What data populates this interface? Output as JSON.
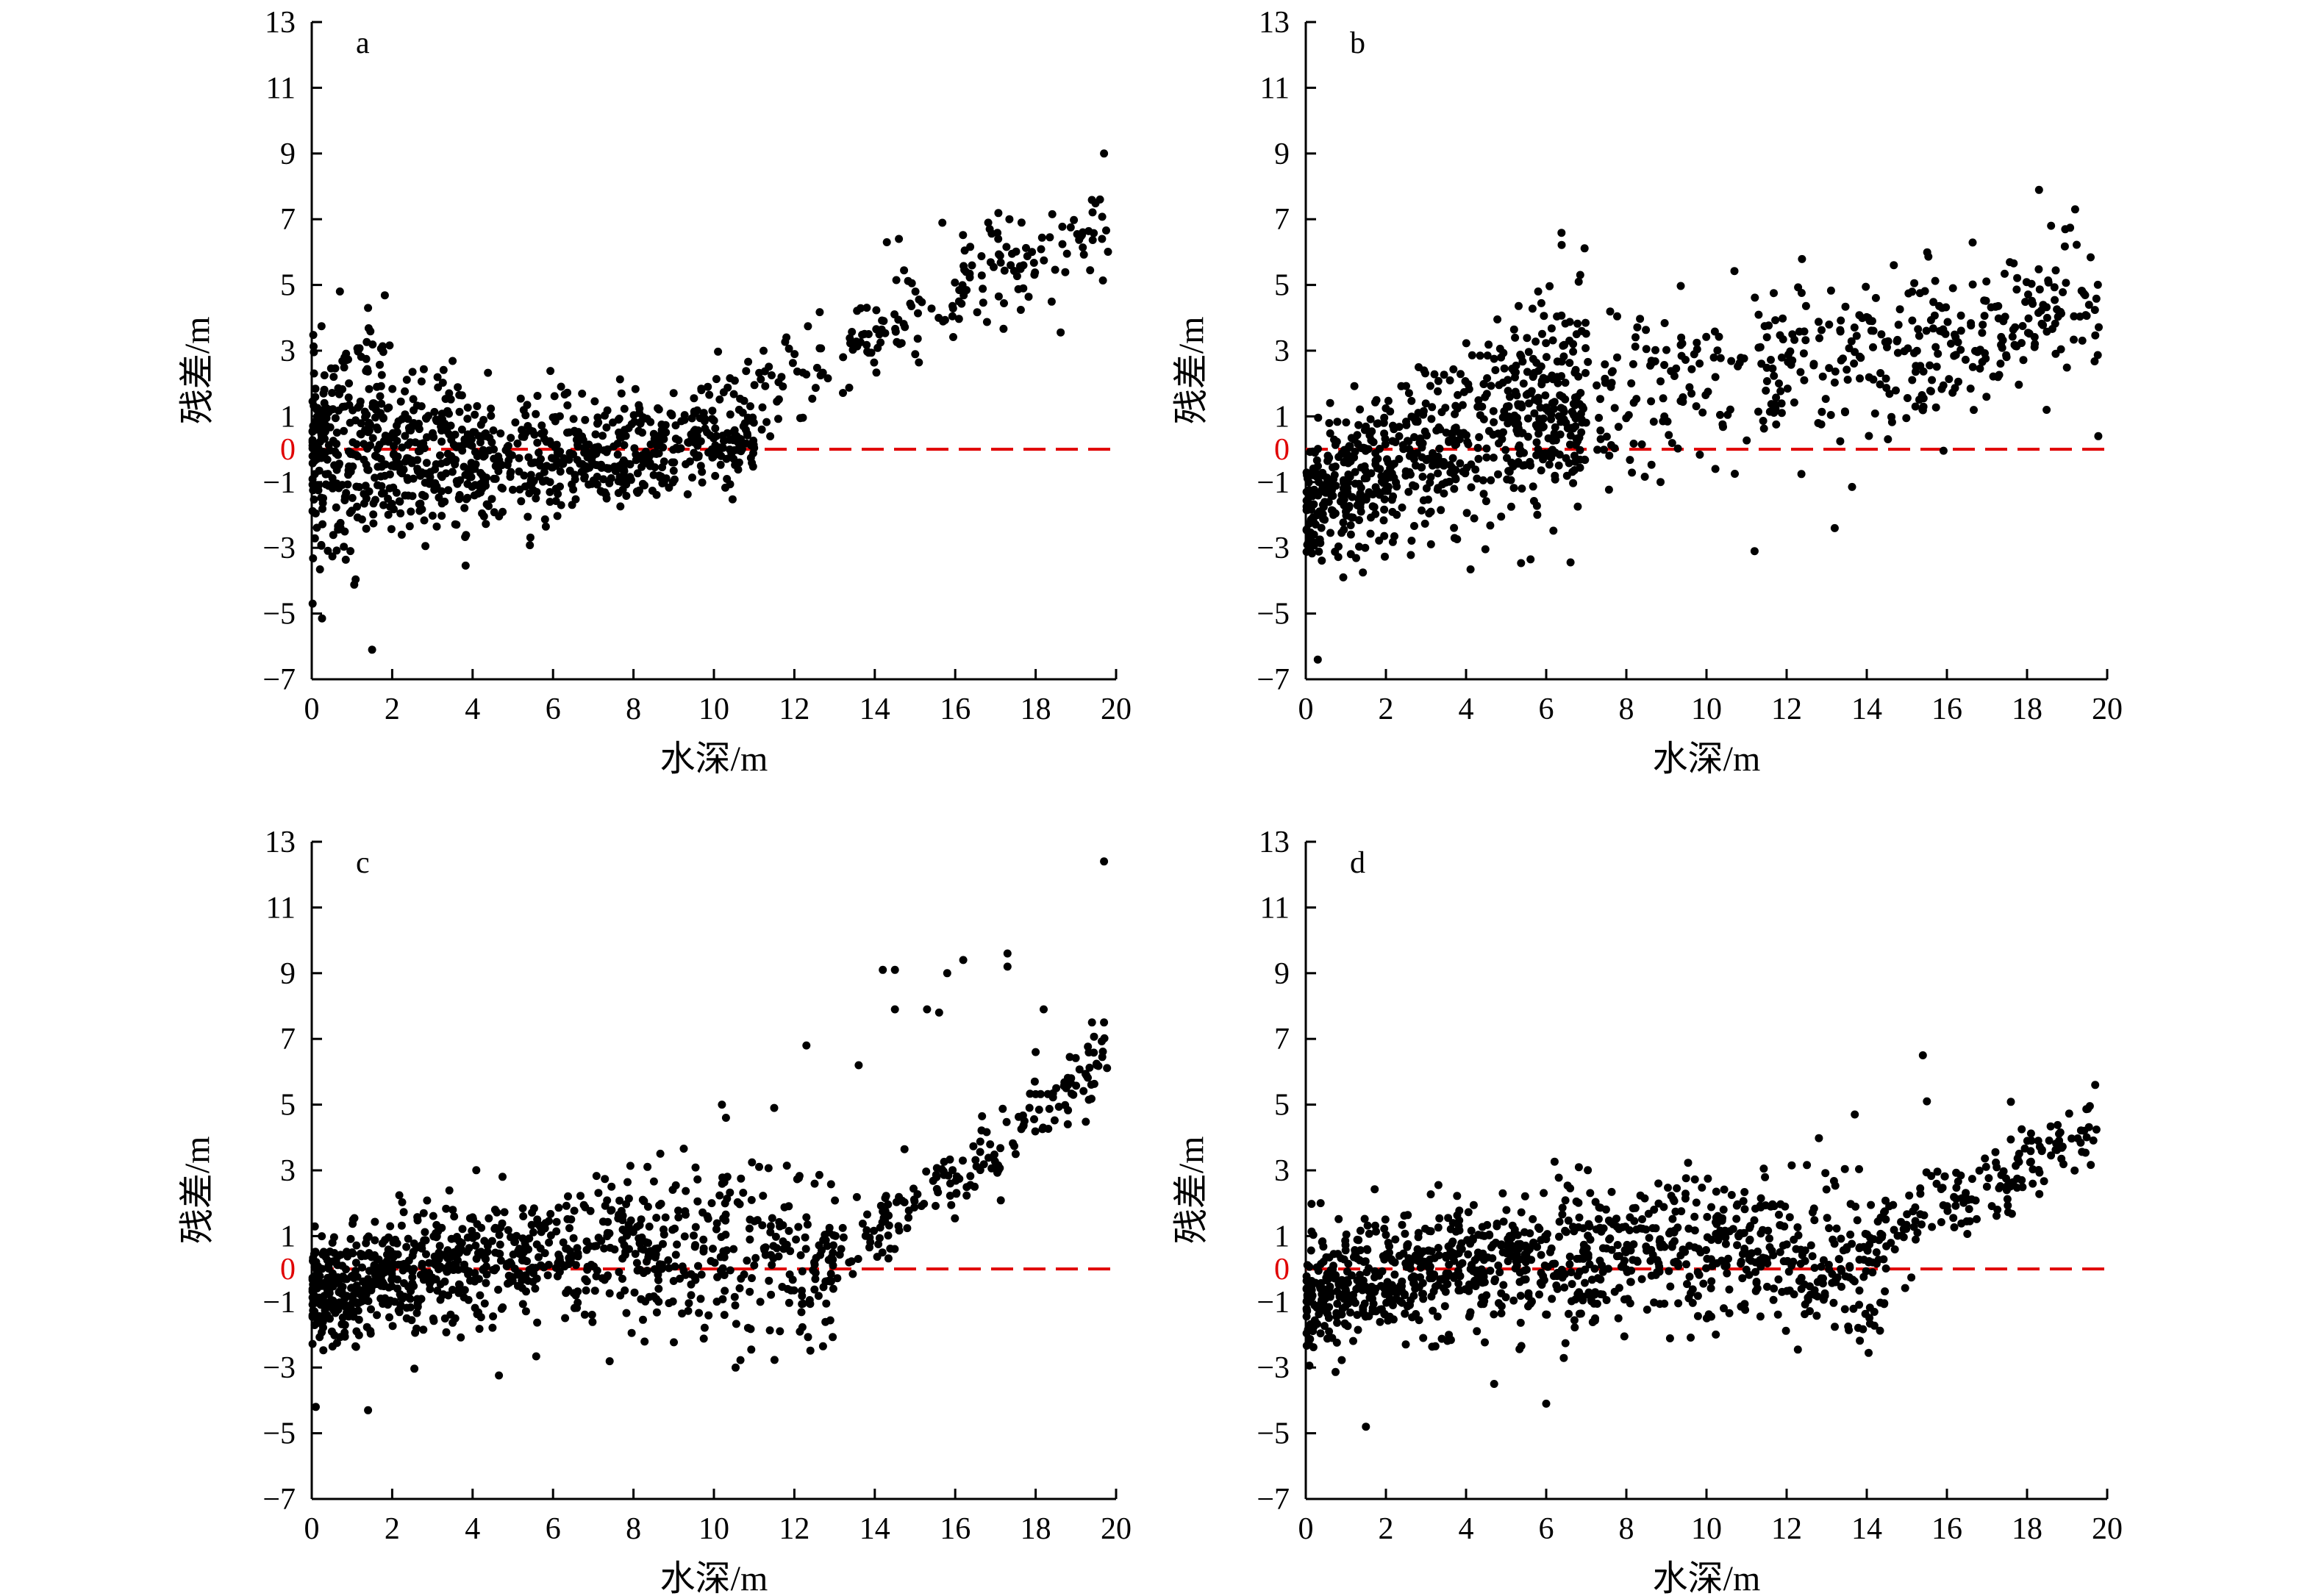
{
  "figure": {
    "colors": {
      "points": "#000000",
      "zero_line": "#e00000",
      "axes": "#000000"
    }
  },
  "chart_data": [
    {
      "type": "scatter",
      "panel_label": "a",
      "xlabel": "水深/m",
      "ylabel": "残差/m",
      "xlim": [
        0,
        20
      ],
      "ylim": [
        -7,
        13
      ],
      "xticks": [
        "0",
        "2",
        "4",
        "6",
        "8",
        "10",
        "12",
        "14",
        "16",
        "18",
        "20"
      ],
      "yticks": [
        "−7",
        "−5",
        "−3",
        "−1",
        "1",
        "3",
        "5",
        "7",
        "9",
        "11",
        "13"
      ],
      "reference_line": {
        "y": 0,
        "label": "0",
        "style": "dashed",
        "color": "#e00000"
      },
      "trend": "residuals scattered around 0 (about −3 to 3) for depths 0–10 m, rising steadily from about 1 m at 10 m depth to about 7 m at 20 m",
      "outliers": [
        [
          1.5,
          -6.1
        ],
        [
          19.7,
          9.0
        ],
        [
          19.6,
          7.6
        ],
        [
          0.7,
          4.8
        ],
        [
          1.4,
          4.3
        ],
        [
          14.3,
          6.3
        ],
        [
          14.6,
          6.4
        ]
      ]
    },
    {
      "type": "scatter",
      "panel_label": "b",
      "xlabel": "水深/m",
      "ylabel": "残差/m",
      "xlim": [
        0,
        20
      ],
      "ylim": [
        -7,
        13
      ],
      "xticks": [
        "0",
        "2",
        "4",
        "6",
        "8",
        "10",
        "12",
        "14",
        "16",
        "18",
        "20"
      ],
      "yticks": [
        "−7",
        "−5",
        "−3",
        "−1",
        "1",
        "3",
        "5",
        "7",
        "9",
        "11",
        "13"
      ],
      "reference_line": {
        "y": 0,
        "label": "0",
        "style": "dashed",
        "color": "#e00000"
      },
      "trend": "residuals rise from about −2 m near 0 m depth to about 1.5 m at 6 m, then widely scattered between −3 and 5 m, reaching about 5–7 m at 19–20 m",
      "outliers": [
        [
          0.3,
          -6.4
        ],
        [
          19.2,
          7.3
        ],
        [
          18.6,
          6.8
        ],
        [
          5.8,
          4.8
        ],
        [
          13.2,
          -2.4
        ],
        [
          11.2,
          -3.1
        ]
      ]
    },
    {
      "type": "scatter",
      "panel_label": "c",
      "xlabel": "水深/m",
      "ylabel": "残差/m",
      "xlim": [
        0,
        20
      ],
      "ylim": [
        -7,
        13
      ],
      "xticks": [
        "0",
        "2",
        "4",
        "6",
        "8",
        "10",
        "12",
        "14",
        "16",
        "18",
        "20"
      ],
      "yticks": [
        "−7",
        "−5",
        "−3",
        "−1",
        "1",
        "3",
        "5",
        "7",
        "9",
        "11",
        "13"
      ],
      "reference_line": {
        "y": 0,
        "label": "0",
        "style": "dashed",
        "color": "#e00000"
      },
      "trend": "residuals near −1 to 1 m for depths 0–4 m, centred near 0–1 m up to 13 m, then increasing to about 5–6 m at 19–20 m with a sparse upper branch between 5 and 10 m",
      "outliers": [
        [
          19.7,
          12.4
        ],
        [
          17.3,
          9.6
        ],
        [
          17.3,
          9.2
        ],
        [
          14.2,
          9.1
        ],
        [
          14.5,
          9.1
        ],
        [
          15.8,
          9.0
        ],
        [
          16.2,
          9.4
        ],
        [
          15.3,
          7.9
        ],
        [
          14.5,
          7.9
        ],
        [
          15.6,
          7.8
        ],
        [
          18.2,
          7.9
        ],
        [
          12.3,
          6.8
        ],
        [
          13.6,
          6.2
        ],
        [
          18.0,
          6.6
        ],
        [
          19.4,
          7.5
        ],
        [
          19.7,
          7.5
        ],
        [
          10.2,
          5.0
        ],
        [
          10.3,
          4.6
        ],
        [
          11.5,
          4.9
        ],
        [
          1.4,
          -4.3
        ],
        [
          0.1,
          -4.2
        ]
      ]
    },
    {
      "type": "scatter",
      "panel_label": "d",
      "xlabel": "水深/m",
      "ylabel": "残差/m",
      "xlim": [
        0,
        20
      ],
      "ylim": [
        -7,
        13
      ],
      "xticks": [
        "0",
        "2",
        "4",
        "6",
        "8",
        "10",
        "12",
        "14",
        "16",
        "18",
        "20"
      ],
      "yticks": [
        "−7",
        "−5",
        "−3",
        "−1",
        "1",
        "3",
        "5",
        "7",
        "9",
        "11",
        "13"
      ],
      "reference_line": {
        "y": 0,
        "label": "0",
        "style": "dashed",
        "color": "#e00000"
      },
      "trend": "residuals clustered between −3 and 2 m for depths 0–14 m, then rising from about 1 m at 15 m depth to about 5 m at 20 m",
      "outliers": [
        [
          1.5,
          -4.8
        ],
        [
          15.4,
          6.5
        ],
        [
          15.5,
          5.1
        ],
        [
          13.7,
          4.7
        ],
        [
          19.7,
          5.6
        ],
        [
          6.0,
          -4.1
        ],
        [
          4.7,
          -3.5
        ]
      ]
    }
  ]
}
